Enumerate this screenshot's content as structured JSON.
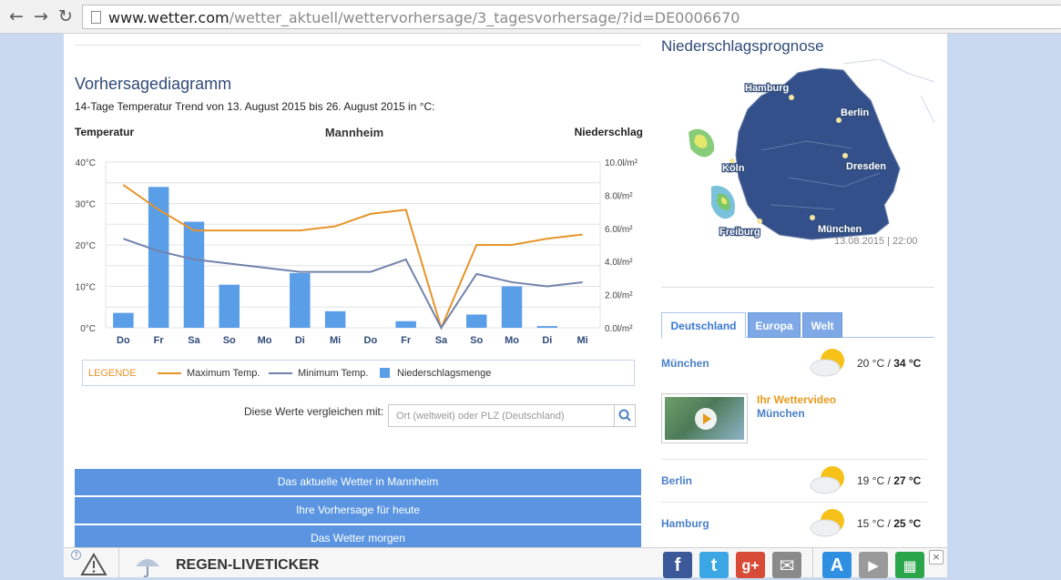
{
  "browser": {
    "url_host": "www.wetter.com",
    "url_path": "/wetter_aktuell/wettervorhersage/3_tagesvorhersage/?id=DE0006670",
    "back_icon": "arrow-left-icon",
    "forward_icon": "arrow-right-icon",
    "reload_icon": "reload-icon"
  },
  "main": {
    "title": "Vorhersagediagramm",
    "subtitle": "14-Tage Temperatur Trend von 13. August 2015 bis 26. August 2015 in °C:",
    "compare_label": "Diese Werte vergleichen mit:",
    "compare_placeholder": "Ort (weltweit) oder PLZ (Deutschland)",
    "buttons": [
      "Das aktuelle Wetter in Mannheim",
      "Ihre Vorhersage für heute",
      "Das Wetter morgen"
    ]
  },
  "chart_data": {
    "type": "bar",
    "title": "Mannheim",
    "left_axis_title": "Temperatur",
    "right_axis_title": "Niederschlag",
    "categories": [
      "Do",
      "Fr",
      "Sa",
      "So",
      "Mo",
      "Di",
      "Mi",
      "Do",
      "Fr",
      "Sa",
      "So",
      "Mo",
      "Di",
      "Mi"
    ],
    "left_ticks": [
      "0°C",
      "10°C",
      "20°C",
      "30°C",
      "40°C"
    ],
    "right_ticks": [
      "0.0l/m²",
      "2.0l/m²",
      "4.0l/m²",
      "6.0l/m²",
      "8.0l/m²",
      "10.0l/m²"
    ],
    "ylim_temp": [
      0,
      40
    ],
    "ylim_precip": [
      0,
      10
    ],
    "grid": true,
    "series": [
      {
        "name": "Maximum Temp.",
        "type": "line",
        "color": "#e7942a",
        "values": [
          34.5,
          28.5,
          23.5,
          23.5,
          23.5,
          23.5,
          24.5,
          27.5,
          28.5,
          0,
          20,
          20,
          21.5,
          22.5
        ]
      },
      {
        "name": "Minimum Temp.",
        "type": "line",
        "color": "#7182ad",
        "values": [
          21.5,
          18.5,
          16.5,
          15.5,
          14.5,
          13.5,
          13.5,
          13.5,
          16.5,
          0,
          13,
          11,
          10,
          11
        ]
      },
      {
        "name": "Niederschlagsmenge",
        "type": "bar",
        "color": "#5b9ee8",
        "values": [
          0.9,
          8.5,
          6.4,
          2.6,
          0,
          3.3,
          1.0,
          0,
          0.4,
          0,
          0.8,
          2.5,
          0.1,
          0
        ]
      }
    ],
    "legend": {
      "title": "LEGENDE",
      "placement": "bottom"
    }
  },
  "sidebar": {
    "map_title": "Niederschlagsprognose",
    "map_timestamp": "13.08.2015 | 22:00",
    "map_cities": [
      "Hamburg",
      "Berlin",
      "Köln",
      "Dresden",
      "Freiburg",
      "München"
    ],
    "tabs": [
      "Deutschland",
      "Europa",
      "Welt"
    ],
    "active_tab": "Deutschland",
    "forecast": [
      {
        "city": "München",
        "min": "20 °C",
        "max": "34 °C",
        "icon": "sun-cloud-icon"
      },
      {
        "city": "Berlin",
        "min": "19 °C",
        "max": "27 °C",
        "icon": "sun-cloud-icon"
      },
      {
        "city": "Hamburg",
        "min": "15 °C",
        "max": "25 °C",
        "icon": "sun-cloud-icon"
      }
    ],
    "temp_separator": "/",
    "video": {
      "title": "Ihr Wettervideo",
      "city": "München",
      "icon": "play-icon"
    }
  },
  "ticker": {
    "label": "REGEN-LIVETICKER",
    "help": "?",
    "close": "×",
    "social": [
      {
        "name": "facebook",
        "glyph": "f",
        "color": "#3b5998"
      },
      {
        "name": "twitter",
        "glyph": "t",
        "color": "#3aa7e4"
      },
      {
        "name": "google-plus",
        "glyph": "g+",
        "color": "#d84b37"
      },
      {
        "name": "mail",
        "glyph": "✉",
        "color": "#8a8a8a"
      },
      {
        "name": "app-store",
        "glyph": "A",
        "color": "#2f8fe0"
      },
      {
        "name": "google-play",
        "glyph": "▶",
        "color": "#9a9a9a"
      },
      {
        "name": "windows-store",
        "glyph": "▦",
        "color": "#2aa54a"
      }
    ]
  }
}
